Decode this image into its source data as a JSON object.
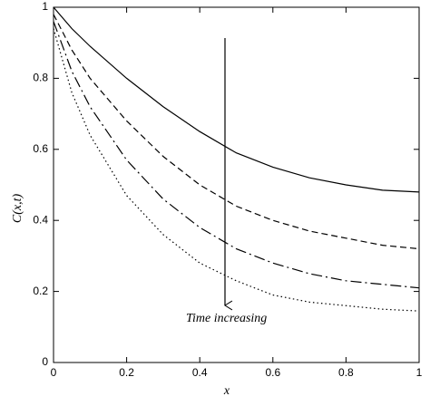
{
  "chart_data": {
    "type": "line",
    "ylabel": "C(x,t)",
    "xlabel": "x",
    "annotation": "Time increasing",
    "x": [
      0,
      0.05,
      0.1,
      0.2,
      0.3,
      0.4,
      0.5,
      0.6,
      0.7,
      0.8,
      0.9,
      1
    ],
    "series": [
      {
        "color": "#000000",
        "dash": "solid",
        "values": [
          1,
          0.94,
          0.89,
          0.8,
          0.72,
          0.65,
          0.59,
          0.55,
          0.52,
          0.5,
          0.485,
          0.48
        ]
      },
      {
        "color": "#000000",
        "dash": "dashed",
        "values": [
          0.98,
          0.88,
          0.8,
          0.68,
          0.58,
          0.5,
          0.44,
          0.4,
          0.37,
          0.35,
          0.33,
          0.32
        ]
      },
      {
        "color": "#000000",
        "dash": "dashdot",
        "values": [
          0.96,
          0.82,
          0.72,
          0.57,
          0.46,
          0.38,
          0.32,
          0.28,
          0.25,
          0.23,
          0.22,
          0.21
        ]
      },
      {
        "color": "#000000",
        "dash": "dotted",
        "values": [
          0.94,
          0.76,
          0.64,
          0.47,
          0.36,
          0.28,
          0.23,
          0.19,
          0.17,
          0.16,
          0.15,
          0.145
        ]
      }
    ],
    "xlim": [
      0,
      1
    ],
    "ylim": [
      0,
      1
    ],
    "xticks": [
      0,
      0.2,
      0.4,
      0.6,
      0.8,
      1
    ],
    "yticks": [
      0,
      0.2,
      0.4,
      0.6,
      0.8,
      1
    ],
    "grid": false
  }
}
